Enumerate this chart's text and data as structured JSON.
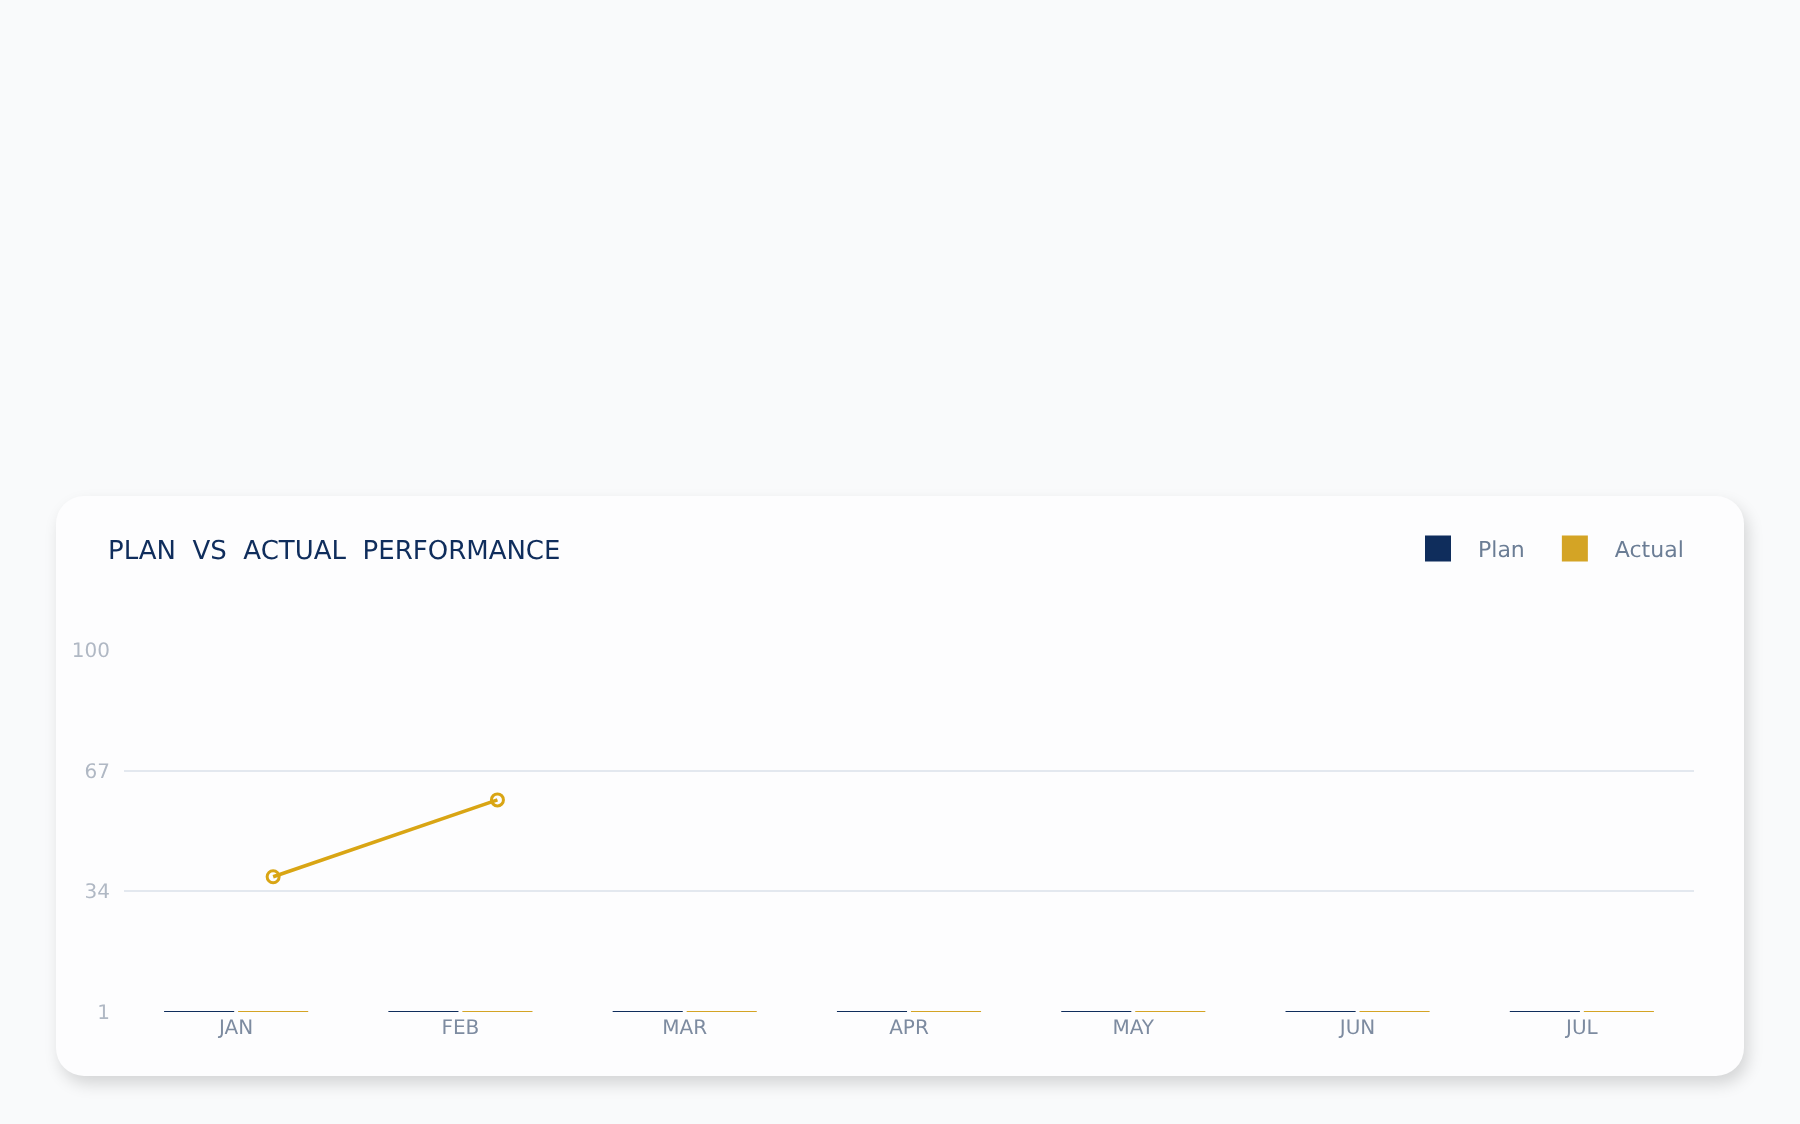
{
  "chart_data": {
    "type": "bar",
    "title": "PLAN  VS  ACTUAL  PERFORMANCE",
    "categories": [
      "JAN",
      "FEB",
      "MAR",
      "APR",
      "MAY",
      "JUN",
      "JUL"
    ],
    "series": [
      {
        "name": "Plan",
        "color": "#0f2d5c",
        "values": [
          1,
          1,
          1,
          1,
          1,
          1,
          1
        ]
      },
      {
        "name": "Actual",
        "color": "#d4a425",
        "values": [
          1,
          1,
          1,
          1,
          1,
          1,
          1
        ]
      },
      {
        "type": "line",
        "color": "#d9a514",
        "marker": "circle",
        "values": [
          38,
          59,
          null,
          null,
          null,
          null,
          null
        ]
      }
    ],
    "ylim": [
      1,
      100
    ],
    "yticks": [
      1,
      34,
      67,
      100
    ],
    "grid": "y",
    "legend": "top right"
  }
}
